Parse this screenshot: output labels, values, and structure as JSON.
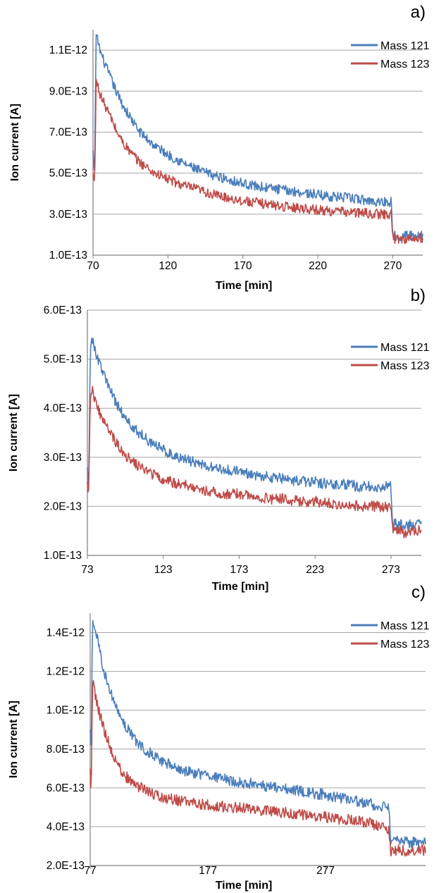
{
  "chart_data": [
    {
      "type": "line",
      "panel_label": "a)",
      "xlabel": "Time [min]",
      "ylabel": "Ion current [A]",
      "xlim": [
        70,
        290
      ],
      "ylim": [
        1e-13,
        1.2e-12
      ],
      "x_ticks": [
        70,
        120,
        170,
        220,
        270
      ],
      "y_ticks": [
        "1.0E-13",
        "3.0E-13",
        "5.0E-13",
        "7.0E-13",
        "9.0E-13",
        "1.1E-12"
      ],
      "y_tick_values": [
        1e-13,
        3e-13,
        5e-13,
        7e-13,
        9e-13,
        1.1e-12
      ],
      "grid": "horizontal",
      "legend": "top-right",
      "series": [
        {
          "name": "Mass 121",
          "color": "#4a7ebb",
          "x": [
            70,
            70.5,
            71,
            71.5,
            72,
            73,
            75,
            78,
            82,
            86,
            90,
            95,
            100,
            110,
            120,
            130,
            140,
            150,
            160,
            170,
            180,
            190,
            200,
            210,
            220,
            230,
            240,
            250,
            260,
            268,
            269,
            270,
            271,
            275,
            280,
            285,
            290
          ],
          "y": [
            6.1e-13,
            5.3e-13,
            5.1e-13,
            7.5e-13,
            1.17e-12,
            1.15e-12,
            1.09e-12,
            1.03e-12,
            9.6e-13,
            8.9e-13,
            8.3e-13,
            7.7e-13,
            7.1e-13,
            6.4e-13,
            5.9e-13,
            5.5e-13,
            5.15e-13,
            4.9e-13,
            4.7e-13,
            4.5e-13,
            4.35e-13,
            4.25e-13,
            4.15e-13,
            4.05e-13,
            3.95e-13,
            3.85e-13,
            3.8e-13,
            3.7e-13,
            3.6e-13,
            3.6e-13,
            3.6e-13,
            2.1e-13,
            1.95e-13,
            1.95e-13,
            1.95e-13,
            1.95e-13,
            2e-13
          ]
        },
        {
          "name": "Mass 123",
          "color": "#be4b48",
          "x": [
            70,
            70.5,
            71,
            71.5,
            72,
            73,
            75,
            78,
            82,
            86,
            90,
            95,
            100,
            110,
            120,
            130,
            140,
            150,
            160,
            170,
            180,
            190,
            200,
            210,
            220,
            230,
            240,
            250,
            260,
            268,
            269,
            270,
            271,
            275,
            280,
            285,
            290
          ],
          "y": [
            5e-13,
            4.7e-13,
            4.6e-13,
            6e-13,
            9.5e-13,
            9.3e-13,
            8.8e-13,
            8.3e-13,
            7.7e-13,
            7e-13,
            6.5e-13,
            6e-13,
            5.6e-13,
            5.05e-13,
            4.7e-13,
            4.4e-13,
            4.2e-13,
            3.95e-13,
            3.8e-13,
            3.65e-13,
            3.55e-13,
            3.45e-13,
            3.35e-13,
            3.3e-13,
            3.2e-13,
            3.15e-13,
            3.1e-13,
            3.05e-13,
            3e-13,
            3e-13,
            3e-13,
            1.85e-13,
            1.8e-13,
            1.8e-13,
            1.8e-13,
            1.8e-13,
            1.85e-13
          ]
        }
      ]
    },
    {
      "type": "line",
      "panel_label": "b)",
      "xlabel": "Time [min]",
      "ylabel": "Ion current [A]",
      "xlim": [
        73,
        293
      ],
      "ylim": [
        1e-13,
        6e-13
      ],
      "x_ticks": [
        73,
        123,
        173,
        223,
        273
      ],
      "y_ticks": [
        "1.0E-13",
        "2.0E-13",
        "3.0E-13",
        "4.0E-13",
        "5.0E-13",
        "6.0E-13"
      ],
      "y_tick_values": [
        1e-13,
        2e-13,
        3e-13,
        4e-13,
        5e-13,
        6e-13
      ],
      "grid": "horizontal",
      "legend": "top-right",
      "series": [
        {
          "name": "Mass 121",
          "color": "#4a7ebb",
          "x": [
            73,
            73.5,
            74,
            74.5,
            75,
            76,
            78,
            81,
            85,
            89,
            93,
            98,
            103,
            113,
            123,
            133,
            143,
            153,
            163,
            173,
            183,
            193,
            203,
            213,
            223,
            233,
            243,
            253,
            263,
            272,
            273,
            274,
            275,
            278,
            283,
            288,
            293
          ],
          "y": [
            2.8e-13,
            2.4e-13,
            2.6e-13,
            4e-13,
            5.3e-13,
            5.4e-13,
            5.2e-13,
            4.9e-13,
            4.6e-13,
            4.3e-13,
            4.05e-13,
            3.8e-13,
            3.6e-13,
            3.35e-13,
            3.15e-13,
            3e-13,
            2.9e-13,
            2.8e-13,
            2.75e-13,
            2.7e-13,
            2.65e-13,
            2.6e-13,
            2.55e-13,
            2.5e-13,
            2.5e-13,
            2.45e-13,
            2.45e-13,
            2.4e-13,
            2.4e-13,
            2.4e-13,
            2.4e-13,
            1.6e-13,
            1.65e-13,
            1.65e-13,
            1.6e-13,
            1.65e-13,
            1.65e-13
          ]
        },
        {
          "name": "Mass 123",
          "color": "#be4b48",
          "x": [
            73,
            73.5,
            74,
            74.5,
            75,
            76,
            78,
            81,
            85,
            89,
            93,
            98,
            103,
            113,
            123,
            133,
            143,
            153,
            163,
            173,
            183,
            193,
            203,
            213,
            223,
            233,
            243,
            253,
            263,
            272,
            273,
            274,
            275,
            278,
            283,
            288,
            293
          ],
          "y": [
            2.5e-13,
            2.25e-13,
            2.4e-13,
            3.5e-13,
            4.3e-13,
            4.4e-13,
            4.2e-13,
            3.9e-13,
            3.65e-13,
            3.45e-13,
            3.25e-13,
            3.05e-13,
            2.9e-13,
            2.7e-13,
            2.55e-13,
            2.45e-13,
            2.4e-13,
            2.3e-13,
            2.25e-13,
            2.25e-13,
            2.2e-13,
            2.15e-13,
            2.15e-13,
            2.1e-13,
            2.1e-13,
            2.05e-13,
            2.05e-13,
            2e-13,
            2e-13,
            2e-13,
            2e-13,
            1.5e-13,
            1.5e-13,
            1.5e-13,
            1.45e-13,
            1.5e-13,
            1.5e-13
          ]
        }
      ]
    },
    {
      "type": "line",
      "panel_label": "c)",
      "xlabel": "Time [min]",
      "ylabel": "Ion current [A]",
      "xlim": [
        77,
        362
      ],
      "ylim": [
        2e-13,
        1.5e-12
      ],
      "x_ticks": [
        77,
        177,
        277
      ],
      "y_ticks": [
        "2.0E-13",
        "4.0E-13",
        "6.0E-13",
        "8.0E-13",
        "1.0E-12",
        "1.2E-12",
        "1.4E-12"
      ],
      "y_tick_values": [
        2e-13,
        4e-13,
        6e-13,
        8e-13,
        1e-12,
        1.2e-12,
        1.4e-12
      ],
      "grid": "horizontal",
      "legend": "top-right",
      "series": [
        {
          "name": "Mass 121",
          "color": "#4a7ebb",
          "x": [
            77,
            77.5,
            78,
            78.5,
            79,
            80,
            82,
            85,
            90,
            95,
            100,
            107,
            115,
            125,
            140,
            155,
            170,
            185,
            200,
            215,
            230,
            245,
            260,
            275,
            290,
            305,
            320,
            330,
            331,
            332,
            333,
            338,
            345,
            352,
            362
          ],
          "y": [
            9e-13,
            8.2e-13,
            8.5e-13,
            1.2e-12,
            1.47e-12,
            1.45e-12,
            1.4e-12,
            1.3e-12,
            1.18e-12,
            1.08e-12,
            1e-12,
            9.2e-13,
            8.5e-13,
            7.9e-13,
            7.3e-13,
            6.9e-13,
            6.7e-13,
            6.5e-13,
            6.35e-13,
            6.2e-13,
            6.05e-13,
            5.9e-13,
            5.8e-13,
            5.65e-13,
            5.5e-13,
            5.3e-13,
            5.1e-13,
            5e-13,
            5e-13,
            3.2e-13,
            3.2e-13,
            3.25e-13,
            3.2e-13,
            3.2e-13,
            3.2e-13
          ]
        },
        {
          "name": "Mass 123",
          "color": "#be4b48",
          "x": [
            77,
            77.5,
            78,
            78.5,
            79,
            80,
            82,
            85,
            90,
            95,
            100,
            107,
            115,
            125,
            140,
            155,
            170,
            185,
            200,
            215,
            230,
            245,
            260,
            275,
            290,
            305,
            320,
            330,
            331,
            332,
            333,
            338,
            345,
            352,
            362
          ],
          "y": [
            7e-13,
            6e-13,
            6.2e-13,
            9e-13,
            1.14e-12,
            1.12e-12,
            1.06e-12,
            9.8e-13,
            8.8e-13,
            7.9e-13,
            7.2e-13,
            6.6e-13,
            6.2e-13,
            5.8e-13,
            5.5e-13,
            5.3e-13,
            5.15e-13,
            5.05e-13,
            5e-13,
            4.9e-13,
            4.8e-13,
            4.7e-13,
            4.6e-13,
            4.5e-13,
            4.4e-13,
            4.3e-13,
            4.1e-13,
            3.9e-13,
            3.9e-13,
            2.8e-13,
            2.75e-13,
            2.8e-13,
            2.75e-13,
            2.8e-13,
            2.8e-13
          ]
        }
      ]
    }
  ]
}
